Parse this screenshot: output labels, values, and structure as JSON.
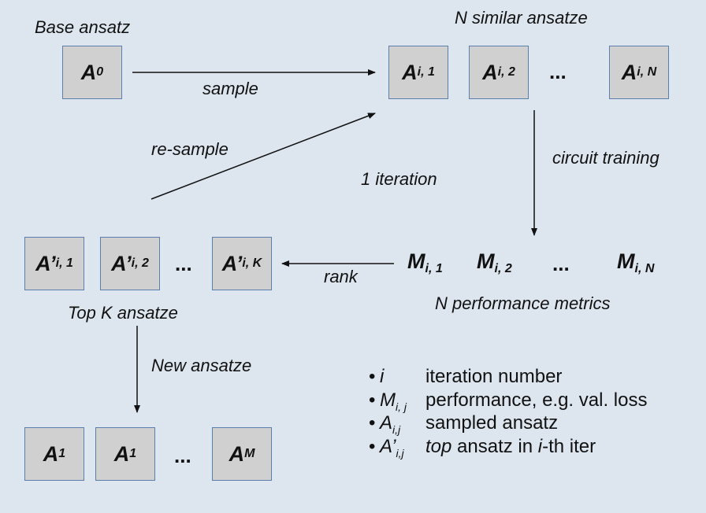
{
  "labels": {
    "base_ansatz": "Base ansatz",
    "n_similar": "N similar ansatze",
    "sample": "sample",
    "re_sample": "re-sample",
    "one_iteration": "1 iteration",
    "circuit_training": "circuit training",
    "rank": "rank",
    "top_k": "Top K ansatze",
    "n_performance": "N performance metrics",
    "new_ansatze": "New ansatze"
  },
  "boxes": {
    "a0": {
      "main": "A",
      "sub": "0"
    },
    "ai1": {
      "main": "A",
      "sub": "i, 1"
    },
    "ai2": {
      "main": "A",
      "sub": "i, 2"
    },
    "aiN": {
      "main": "A",
      "sub": "i, N"
    },
    "ap1": {
      "main": "A’",
      "sub": "i, 1"
    },
    "ap2": {
      "main": "A’",
      "sub": "i, 2"
    },
    "apK": {
      "main": "A’",
      "sub": "i, K"
    },
    "a1a": {
      "main": "A",
      "sub": "1"
    },
    "a1b": {
      "main": "A",
      "sub": "1"
    },
    "aM": {
      "main": "A",
      "sub": "M"
    }
  },
  "metrics": {
    "m1": {
      "main": "M",
      "sub": "i, 1"
    },
    "m2": {
      "main": "M",
      "sub": "i, 2"
    },
    "mN": {
      "main": "M",
      "sub": "i, N"
    }
  },
  "ellipsis": "...",
  "legend": {
    "bullet": "•",
    "items": [
      {
        "sym": "i",
        "sub": "",
        "desc": "iteration number"
      },
      {
        "sym": "M",
        "sub": "i, j",
        "desc": "performance, e.g. val. loss"
      },
      {
        "sym": "A",
        "sub": "i,j",
        "desc": "sampled ansatz"
      },
      {
        "sym": "A’",
        "sub": "i,j",
        "desc_pre": "top",
        "desc": " ansatz in ",
        "desc_i": "i",
        "desc_post": "-th iter"
      }
    ]
  },
  "colors": {
    "background": "#dde6ef",
    "box_fill": "#d0d0d0",
    "box_border": "#5a7fae"
  }
}
